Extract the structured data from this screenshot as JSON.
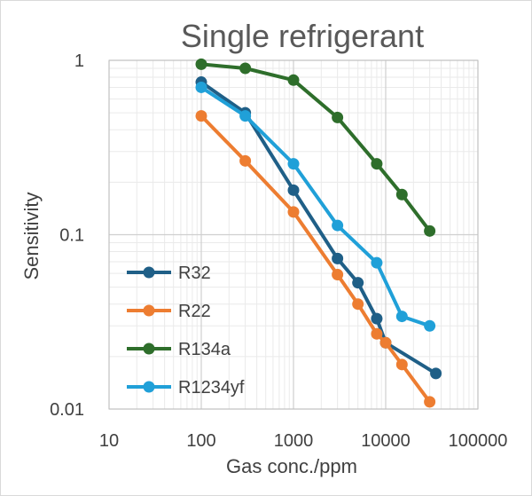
{
  "chart_data": {
    "type": "line",
    "title": "Single refrigerant",
    "xlabel": "Gas conc./ppm",
    "ylabel": "Sensitivity",
    "xscale": "log",
    "yscale": "log",
    "xlim": [
      10,
      100000
    ],
    "ylim": [
      0.01,
      1
    ],
    "x_ticks": [
      10,
      100,
      1000,
      10000,
      100000
    ],
    "x_tick_labels": [
      "10",
      "100",
      "1000",
      "10000",
      "100000"
    ],
    "y_ticks": [
      0.01,
      0.1,
      1
    ],
    "y_tick_labels": [
      "0.01",
      "0.1",
      "1"
    ],
    "grid": true,
    "legend_position": "left-bottom",
    "series": [
      {
        "name": "R32",
        "color": "#1f5f87",
        "x": [
          100,
          300,
          1000,
          3000,
          5000,
          8000,
          10000,
          35000
        ],
        "y": [
          0.75,
          0.5,
          0.18,
          0.073,
          0.053,
          0.033,
          0.024,
          0.016
        ]
      },
      {
        "name": "R22",
        "color": "#ed7d31",
        "x": [
          100,
          300,
          1000,
          3000,
          5000,
          8000,
          10000,
          15000,
          30000
        ],
        "y": [
          0.48,
          0.265,
          0.135,
          0.059,
          0.04,
          0.027,
          0.024,
          0.018,
          0.011
        ]
      },
      {
        "name": "R134a",
        "color": "#2e6e2b",
        "x": [
          100,
          300,
          1000,
          3000,
          8000,
          15000,
          30000
        ],
        "y": [
          0.95,
          0.9,
          0.77,
          0.47,
          0.255,
          0.17,
          0.105
        ]
      },
      {
        "name": "R1234yf",
        "color": "#20a0d8",
        "x": [
          100,
          300,
          1000,
          3000,
          8000,
          15000,
          30000
        ],
        "y": [
          0.7,
          0.48,
          0.255,
          0.113,
          0.069,
          0.034,
          0.03
        ]
      }
    ]
  }
}
